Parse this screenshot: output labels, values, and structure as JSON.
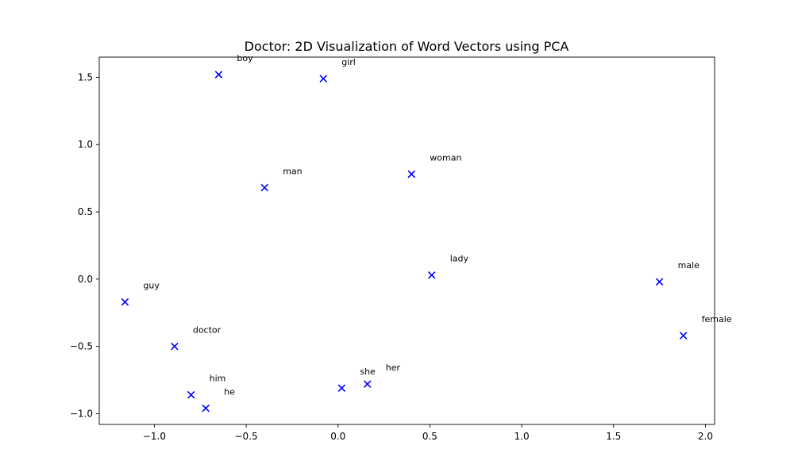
{
  "chart_data": {
    "type": "scatter",
    "title": "Doctor: 2D Visualization of Word Vectors using PCA",
    "xlabel": "",
    "ylabel": "",
    "xlim": [
      -1.3,
      2.05
    ],
    "ylim": [
      -1.08,
      1.65
    ],
    "xticks": [
      -1.0,
      -0.5,
      0.0,
      0.5,
      1.0,
      1.5,
      2.0
    ],
    "xtick_labels": [
      "−1.0",
      "−0.5",
      "0.0",
      "0.5",
      "1.0",
      "1.5",
      "2.0"
    ],
    "yticks": [
      -1.0,
      -0.5,
      0.0,
      0.5,
      1.0,
      1.5
    ],
    "ytick_labels": [
      "−1.0",
      "−0.5",
      "0.0",
      "0.5",
      "1.0",
      "1.5"
    ],
    "grid": false,
    "marker": "x",
    "marker_color": "#0000ff",
    "points": [
      {
        "label": "boy",
        "x": -0.65,
        "y": 1.52
      },
      {
        "label": "girl",
        "x": -0.08,
        "y": 1.49
      },
      {
        "label": "woman",
        "x": 0.4,
        "y": 0.78
      },
      {
        "label": "man",
        "x": -0.4,
        "y": 0.68
      },
      {
        "label": "lady",
        "x": 0.51,
        "y": 0.03
      },
      {
        "label": "male",
        "x": 1.75,
        "y": -0.02
      },
      {
        "label": "guy",
        "x": -1.16,
        "y": -0.17
      },
      {
        "label": "female",
        "x": 1.88,
        "y": -0.42
      },
      {
        "label": "doctor",
        "x": -0.89,
        "y": -0.5
      },
      {
        "label": "she",
        "x": 0.02,
        "y": -0.81
      },
      {
        "label": "her",
        "x": 0.16,
        "y": -0.78
      },
      {
        "label": "him",
        "x": -0.8,
        "y": -0.86
      },
      {
        "label": "he",
        "x": -0.72,
        "y": -0.96
      }
    ]
  }
}
